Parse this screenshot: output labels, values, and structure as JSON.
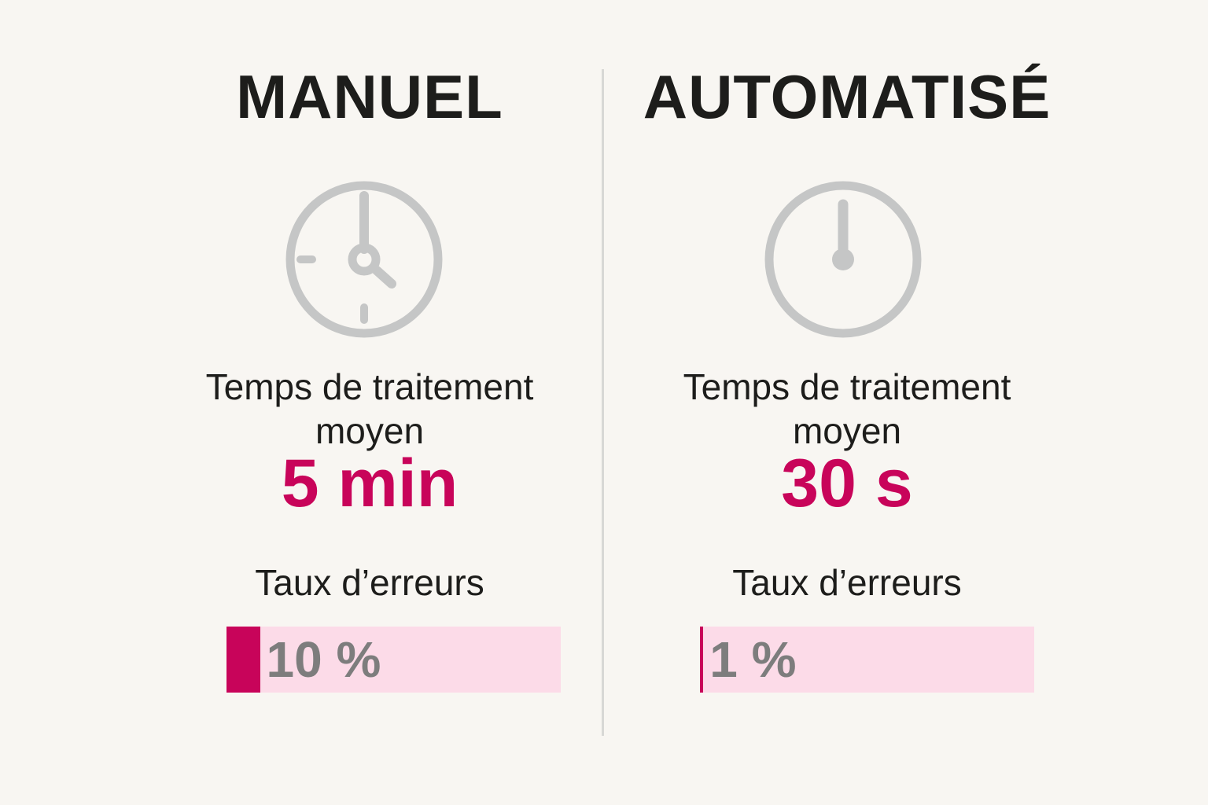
{
  "colors": {
    "background": "#f8f6f2",
    "text": "#1d1d1b",
    "accent": "#c8045a",
    "bar_bg": "#fcdbe8",
    "bar_value_text": "#7d7d7d",
    "icon_gray": "#c5c6c6",
    "divider": "#d8d8d5"
  },
  "columns": [
    {
      "title": "MANUEL",
      "icon": "clock-icon",
      "time_label": "Temps de traitement moyen",
      "time_value": "5 min",
      "error_label": "Taux d’erreurs",
      "error_value": "10 %",
      "error_percent": 10
    },
    {
      "title": "AUTOMATISÉ",
      "icon": "timer-icon",
      "time_label": "Temps de traitement moyen",
      "time_value": "30 s",
      "error_label": "Taux d’erreurs",
      "error_value": "1 %",
      "error_percent": 1
    }
  ],
  "chart_data": {
    "type": "bar",
    "title": "MANUEL vs AUTOMATISÉ",
    "categories": [
      "MANUEL",
      "AUTOMATISÉ"
    ],
    "series": [
      {
        "name": "Temps de traitement moyen",
        "values_text": [
          "5 min",
          "30 s"
        ],
        "values_seconds": [
          300,
          30
        ]
      },
      {
        "name": "Taux d’erreurs (%)",
        "values": [
          10,
          1
        ]
      }
    ],
    "xlim": [
      0,
      100
    ],
    "grid": false,
    "legend_position": "none"
  }
}
